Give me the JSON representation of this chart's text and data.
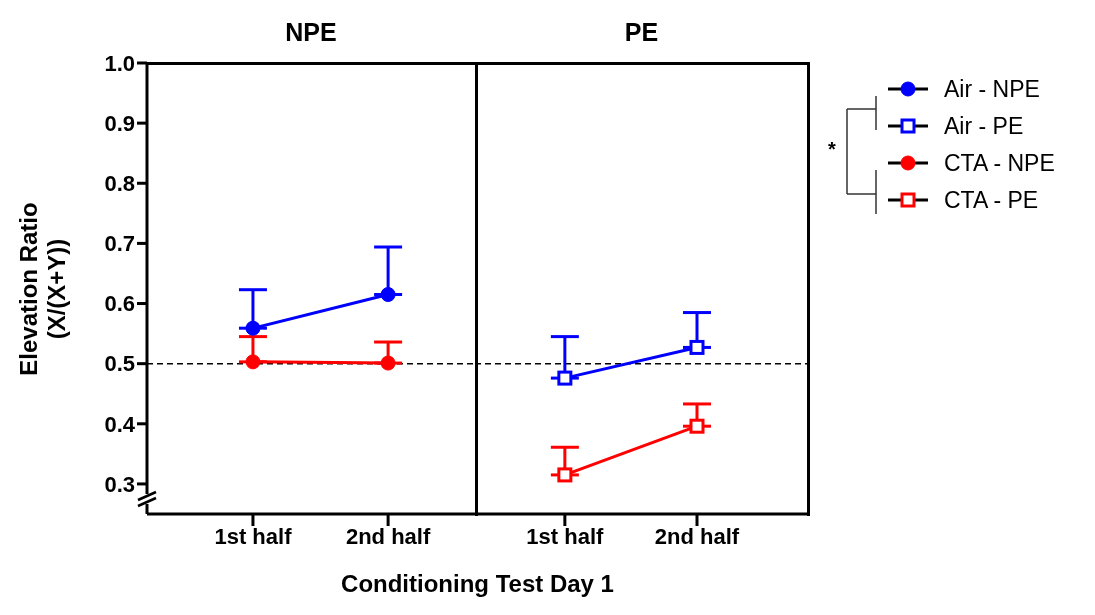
{
  "chart_data": [
    {
      "type": "line",
      "title": "NPE",
      "xlabel": "Conditioning Test Day 1",
      "ylabel": "Elevation Ratio\n(X/(X+Y))",
      "categories": [
        "1st half",
        "2nd half"
      ],
      "ylim": [
        0.25,
        1.0
      ],
      "yticks": [
        0.3,
        0.4,
        0.5,
        0.6,
        0.7,
        0.8,
        0.9,
        {
          "value": 1,
          "label": "1.0"
        }
      ],
      "legend": "right",
      "grid": false,
      "series": [
        {
          "name": "Air - NPE",
          "color": "#0000ff",
          "marker": "circle",
          "values": [
            0.559,
            0.615
          ],
          "errors": [
            [
              0.559,
              0.623
            ],
            [
              0.615,
              0.694
            ]
          ]
        },
        {
          "name": "CTA - NPE",
          "color": "#ff0000",
          "marker": "circle",
          "values": [
            0.503,
            0.501
          ],
          "errors": [
            [
              0.503,
              0.545
            ],
            [
              0.501,
              0.536
            ]
          ]
        }
      ],
      "ref_lines": [
        {
          "axis": "y",
          "value": 0.5,
          "color": "#000000",
          "line_style": "dashed"
        }
      ]
    },
    {
      "type": "line",
      "title": "PE",
      "categories": [
        "1st half",
        "2nd half"
      ],
      "ylim": [
        0.25,
        1.0
      ],
      "yticks": [
        0.3,
        0.4,
        0.5,
        0.6,
        0.7,
        0.8,
        0.9,
        1.0
      ],
      "tick_labels": "x",
      "legend": "right",
      "grid": false,
      "annotations": [
        "*"
      ],
      "series": [
        {
          "name": "Air - PE",
          "color": "#0000ff",
          "marker": "square",
          "values": [
            0.476,
            0.527
          ],
          "errors": [
            [
              0.476,
              0.545
            ],
            [
              0.527,
              0.585
            ]
          ]
        },
        {
          "name": "CTA - PE",
          "color": "#ff0000",
          "marker": "square",
          "values": [
            0.315,
            0.396
          ],
          "errors": [
            [
              0.315,
              0.361
            ],
            [
              0.396,
              0.433
            ]
          ]
        }
      ],
      "ref_lines": [
        {
          "axis": "y",
          "value": 0.5,
          "color": "#000000",
          "line_style": "dashed"
        }
      ]
    }
  ]
}
